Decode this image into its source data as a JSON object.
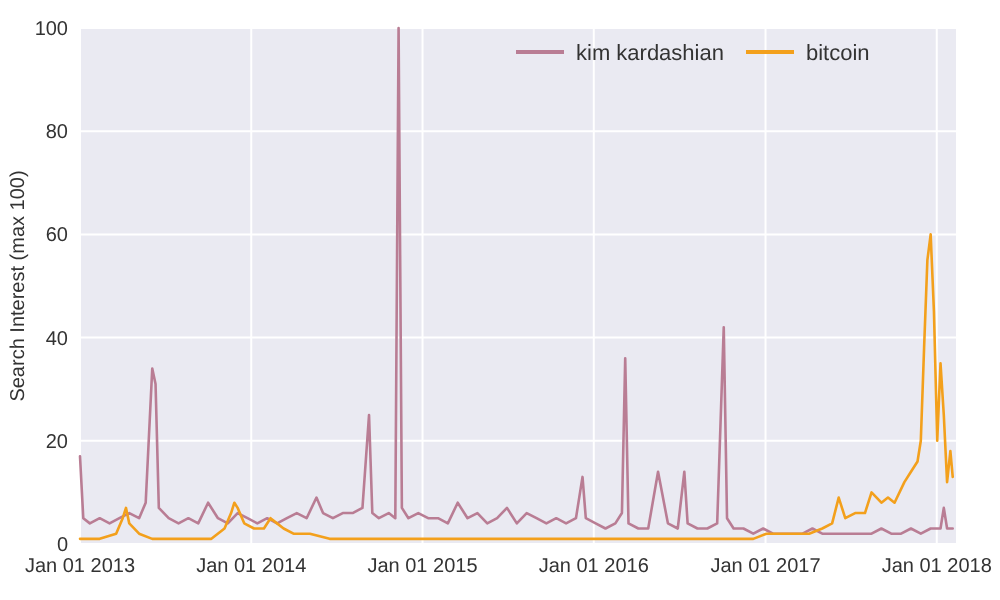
{
  "chart_data": {
    "type": "line",
    "ylabel": "Search Interest (max 100)",
    "xlim": [
      "2013-01-01",
      "2018-02-11"
    ],
    "ylim": [
      0,
      100
    ],
    "xticks": [
      {
        "value": "2013-01-01",
        "label": "Jan 01 2013"
      },
      {
        "value": "2014-01-01",
        "label": "Jan 01 2014"
      },
      {
        "value": "2015-01-01",
        "label": "Jan 01 2015"
      },
      {
        "value": "2016-01-01",
        "label": "Jan 01 2016"
      },
      {
        "value": "2017-01-01",
        "label": "Jan 01 2017"
      },
      {
        "value": "2018-01-01",
        "label": "Jan 01 2018"
      }
    ],
    "yticks": [
      0,
      20,
      40,
      60,
      80,
      100
    ],
    "grid": true,
    "legend": "top right",
    "line_style": "solid",
    "series": [
      {
        "name": "kim kardashian",
        "color": "#b97d94",
        "x": [
          "2013-01-01",
          "2013-01-08",
          "2013-01-22",
          "2013-02-12",
          "2013-03-05",
          "2013-03-26",
          "2013-04-16",
          "2013-05-07",
          "2013-05-21",
          "2013-06-04",
          "2013-06-11",
          "2013-06-18",
          "2013-07-09",
          "2013-07-30",
          "2013-08-20",
          "2013-09-10",
          "2013-10-01",
          "2013-10-22",
          "2013-11-12",
          "2013-12-03",
          "2013-12-24",
          "2014-01-14",
          "2014-02-04",
          "2014-02-25",
          "2014-03-18",
          "2014-04-08",
          "2014-04-29",
          "2014-05-20",
          "2014-06-03",
          "2014-06-24",
          "2014-07-15",
          "2014-08-05",
          "2014-08-26",
          "2014-09-09",
          "2014-09-16",
          "2014-09-30",
          "2014-10-21",
          "2014-11-04",
          "2014-11-11",
          "2014-11-18",
          "2014-12-02",
          "2014-12-23",
          "2015-01-13",
          "2015-02-03",
          "2015-02-24",
          "2015-03-17",
          "2015-04-07",
          "2015-04-28",
          "2015-05-19",
          "2015-06-09",
          "2015-06-30",
          "2015-07-21",
          "2015-08-11",
          "2015-09-01",
          "2015-09-22",
          "2015-10-13",
          "2015-11-03",
          "2015-11-24",
          "2015-12-08",
          "2015-12-15",
          "2016-01-05",
          "2016-01-26",
          "2016-02-16",
          "2016-03-01",
          "2016-03-08",
          "2016-03-15",
          "2016-04-05",
          "2016-04-26",
          "2016-05-17",
          "2016-06-07",
          "2016-06-28",
          "2016-07-12",
          "2016-07-19",
          "2016-08-09",
          "2016-08-30",
          "2016-09-20",
          "2016-10-04",
          "2016-10-11",
          "2016-10-25",
          "2016-11-15",
          "2016-12-06",
          "2016-12-27",
          "2017-01-17",
          "2017-02-07",
          "2017-02-28",
          "2017-03-21",
          "2017-04-11",
          "2017-05-02",
          "2017-05-23",
          "2017-06-13",
          "2017-07-04",
          "2017-07-25",
          "2017-08-15",
          "2017-09-05",
          "2017-09-26",
          "2017-10-17",
          "2017-11-07",
          "2017-11-28",
          "2017-12-19",
          "2018-01-09",
          "2018-01-16",
          "2018-01-23",
          "2018-02-04"
        ],
        "values": [
          17,
          5,
          4,
          5,
          4,
          5,
          6,
          5,
          8,
          34,
          31,
          7,
          5,
          4,
          5,
          4,
          8,
          5,
          4,
          6,
          5,
          4,
          5,
          4,
          5,
          6,
          5,
          9,
          6,
          5,
          6,
          6,
          7,
          25,
          6,
          5,
          6,
          5,
          100,
          7,
          5,
          6,
          5,
          5,
          4,
          8,
          5,
          6,
          4,
          5,
          7,
          4,
          6,
          5,
          4,
          5,
          4,
          5,
          13,
          5,
          4,
          3,
          4,
          6,
          36,
          4,
          3,
          3,
          14,
          4,
          3,
          14,
          4,
          3,
          3,
          4,
          42,
          5,
          3,
          3,
          2,
          3,
          2,
          2,
          2,
          2,
          3,
          2,
          2,
          2,
          2,
          2,
          2,
          3,
          2,
          2,
          3,
          2,
          3,
          3,
          7,
          3,
          3
        ]
      },
      {
        "name": "bitcoin",
        "color": "#f3a01c",
        "x": [
          "2013-01-01",
          "2013-02-12",
          "2013-03-19",
          "2013-04-02",
          "2013-04-09",
          "2013-04-16",
          "2013-05-07",
          "2013-06-04",
          "2013-07-16",
          "2013-08-27",
          "2013-10-08",
          "2013-11-05",
          "2013-11-19",
          "2013-11-26",
          "2013-12-03",
          "2013-12-17",
          "2014-01-07",
          "2014-01-28",
          "2014-02-11",
          "2014-02-25",
          "2014-03-11",
          "2014-04-01",
          "2014-05-06",
          "2014-06-17",
          "2014-08-05",
          "2014-10-07",
          "2014-12-09",
          "2015-03-03",
          "2015-06-02",
          "2015-09-01",
          "2015-12-01",
          "2016-03-01",
          "2016-06-07",
          "2016-09-06",
          "2016-12-06",
          "2017-01-03",
          "2017-02-07",
          "2017-03-07",
          "2017-04-04",
          "2017-05-02",
          "2017-05-23",
          "2017-06-06",
          "2017-06-20",
          "2017-07-11",
          "2017-08-01",
          "2017-08-15",
          "2017-09-05",
          "2017-09-19",
          "2017-10-03",
          "2017-10-24",
          "2017-11-07",
          "2017-11-21",
          "2017-11-28",
          "2017-12-05",
          "2017-12-12",
          "2017-12-19",
          "2017-12-26",
          "2018-01-02",
          "2018-01-09",
          "2018-01-16",
          "2018-01-23",
          "2018-01-30",
          "2018-02-04"
        ],
        "values": [
          1,
          1,
          2,
          5,
          7,
          4,
          2,
          1,
          1,
          1,
          1,
          3,
          6,
          8,
          7,
          4,
          3,
          3,
          5,
          4,
          3,
          2,
          2,
          1,
          1,
          1,
          1,
          1,
          1,
          1,
          1,
          1,
          1,
          1,
          1,
          2,
          2,
          2,
          2,
          3,
          4,
          9,
          5,
          6,
          6,
          10,
          8,
          9,
          8,
          12,
          14,
          16,
          20,
          38,
          55,
          60,
          45,
          20,
          35,
          25,
          12,
          18,
          13
        ]
      }
    ]
  }
}
